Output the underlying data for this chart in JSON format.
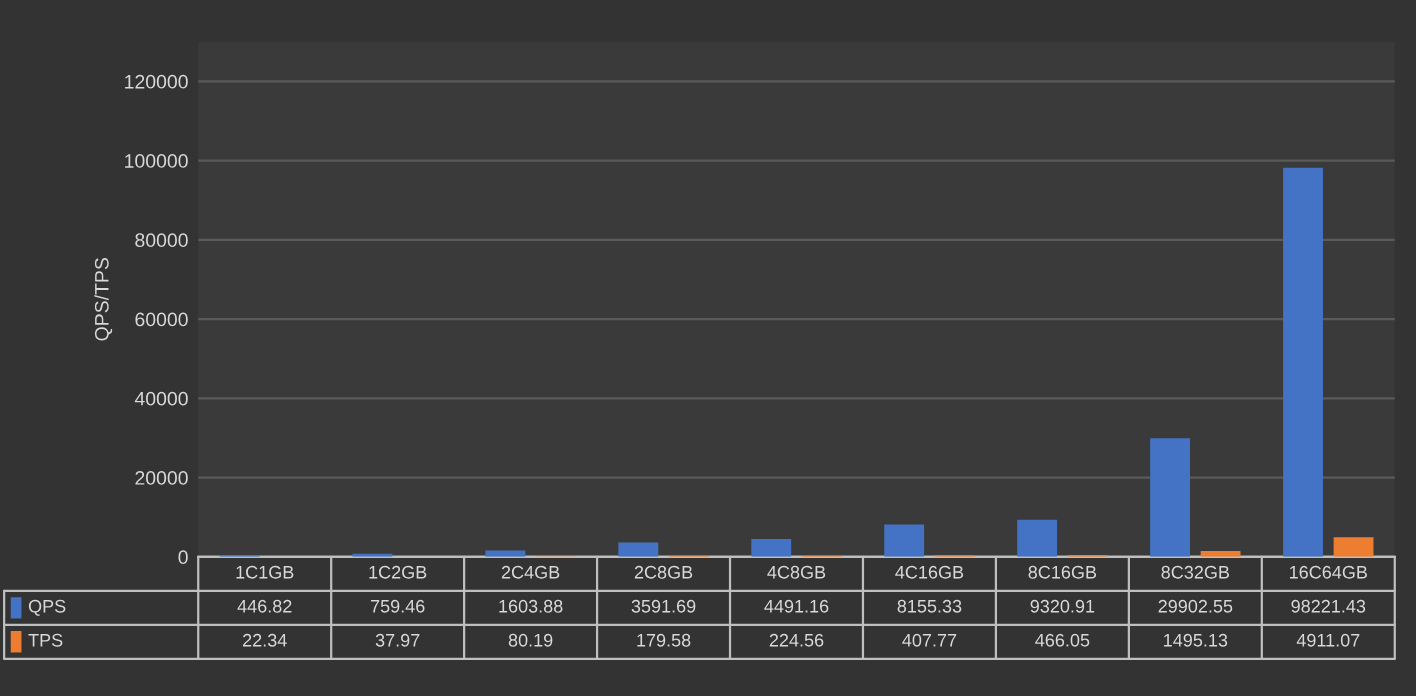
{
  "chart_data": {
    "type": "bar",
    "ylabel": "QPS/TPS",
    "categories": [
      "1C1GB",
      "1C2GB",
      "2C4GB",
      "2C8GB",
      "4C8GB",
      "4C16GB",
      "8C16GB",
      "8C32GB",
      "16C64GB"
    ],
    "series": [
      {
        "name": "QPS",
        "color": "#4472c4",
        "values": [
          446.82,
          759.46,
          1603.88,
          3591.69,
          4491.16,
          8155.33,
          9320.91,
          29902.55,
          98221.43
        ]
      },
      {
        "name": "TPS",
        "color": "#ed7d31",
        "values": [
          22.34,
          37.97,
          80.19,
          179.58,
          224.56,
          407.77,
          466.05,
          1495.13,
          4911.07
        ]
      }
    ],
    "ylim": [
      0,
      130000
    ],
    "yticks": [
      0,
      20000,
      40000,
      60000,
      80000,
      100000,
      120000
    ],
    "grid": "y",
    "legend": "bottom",
    "data_labels": true
  }
}
